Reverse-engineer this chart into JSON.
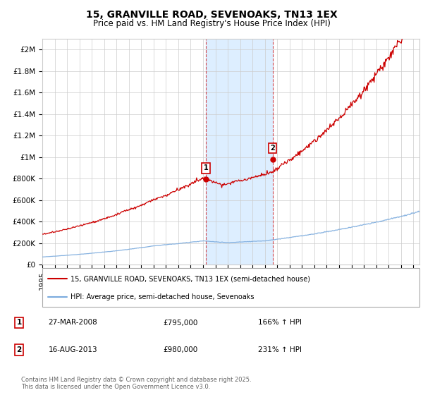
{
  "title": "15, GRANVILLE ROAD, SEVENOAKS, TN13 1EX",
  "subtitle": "Price paid vs. HM Land Registry's House Price Index (HPI)",
  "ylabel_ticks": [
    "£0",
    "£200K",
    "£400K",
    "£600K",
    "£800K",
    "£1M",
    "£1.2M",
    "£1.4M",
    "£1.6M",
    "£1.8M",
    "£2M"
  ],
  "ytick_values": [
    0,
    200000,
    400000,
    600000,
    800000,
    1000000,
    1200000,
    1400000,
    1600000,
    1800000,
    2000000
  ],
  "ylim": [
    0,
    2100000
  ],
  "xlim_start": 1995.0,
  "xlim_end": 2025.5,
  "sale1_x": 2008.23,
  "sale1_y": 795000,
  "sale2_x": 2013.62,
  "sale2_y": 980000,
  "annotation1_date": "27-MAR-2008",
  "annotation1_price": "£795,000",
  "annotation1_hpi": "166% ↑ HPI",
  "annotation2_date": "16-AUG-2013",
  "annotation2_price": "£980,000",
  "annotation2_hpi": "231% ↑ HPI",
  "legend_line1": "15, GRANVILLE ROAD, SEVENOAKS, TN13 1EX (semi-detached house)",
  "legend_line2": "HPI: Average price, semi-detached house, Sevenoaks",
  "footer": "Contains HM Land Registry data © Crown copyright and database right 2025.\nThis data is licensed under the Open Government Licence v3.0.",
  "hpi_line_color": "#7aaadd",
  "sale_line_color": "#cc0000",
  "shaded_region_color": "#ddeeff",
  "background_color": "#ffffff",
  "grid_color": "#cccccc",
  "title_fontsize": 10,
  "subtitle_fontsize": 8.5,
  "tick_fontsize": 7.5
}
